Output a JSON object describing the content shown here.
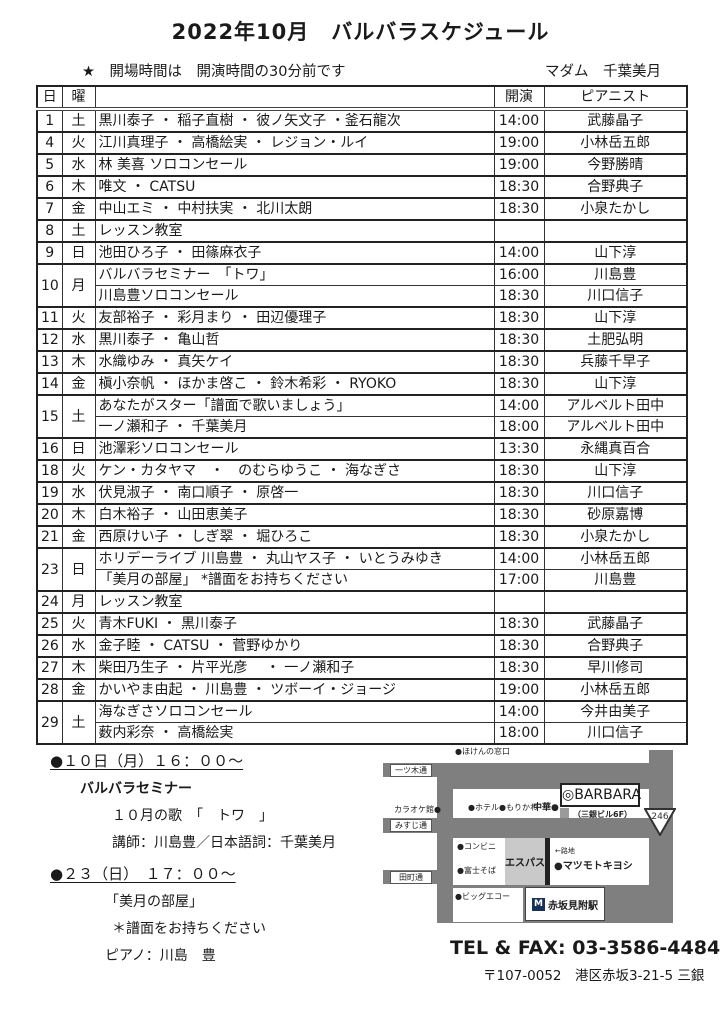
{
  "page": {
    "title": "2022年10月　バルバラスケジュール",
    "note_star": "★　開場時間は　開演時間の30分前です",
    "madam": "マダム　千葉美月"
  },
  "table": {
    "headers": {
      "date": "日",
      "day": "曜",
      "program": "",
      "start": "開演",
      "pianist": "ピアニスト"
    }
  },
  "schedule": [
    {
      "date": "1",
      "day": "土",
      "entries": [
        {
          "program": "黒川泰子 ・ 稲子直樹 ・ 彼ノ矢文子 ・釜石龍次",
          "time": "14:00",
          "pianist": "武藤晶子"
        }
      ]
    },
    {
      "date": "4",
      "day": "火",
      "entries": [
        {
          "program": "江川真理子 ・ 高橋絵実 ・ レジョン・ルイ",
          "time": "19:00",
          "pianist": "小林岳五郎"
        }
      ]
    },
    {
      "date": "5",
      "day": "水",
      "entries": [
        {
          "program": "林 美喜 ソロコンセール",
          "time": "19:00",
          "pianist": "今野勝晴"
        }
      ]
    },
    {
      "date": "6",
      "day": "木",
      "entries": [
        {
          "program": "唯文 ・ CATSU",
          "time": "18:30",
          "pianist": "合野典子"
        }
      ]
    },
    {
      "date": "7",
      "day": "金",
      "entries": [
        {
          "program": "中山エミ ・ 中村扶実 ・ 北川太朗",
          "time": "18:30",
          "pianist": "小泉たかし"
        }
      ]
    },
    {
      "date": "8",
      "day": "土",
      "entries": [
        {
          "program": "レッスン教室",
          "time": "",
          "pianist": ""
        }
      ]
    },
    {
      "date": "9",
      "day": "日",
      "entries": [
        {
          "program": "池田ひろ子 ・ 田篠麻衣子",
          "time": "14:00",
          "pianist": "山下淳"
        }
      ]
    },
    {
      "date": "10",
      "day": "月",
      "entries": [
        {
          "program": "バルバラセミナー　「トワ」",
          "time": "16:00",
          "pianist": "川島豊"
        },
        {
          "program": "川島豊ソロコンセール",
          "time": "18:30",
          "pianist": "川口信子"
        }
      ]
    },
    {
      "date": "11",
      "day": "火",
      "entries": [
        {
          "program": "友部裕子 ・ 彩月まり ・ 田辺優理子",
          "time": "18:30",
          "pianist": "山下淳"
        }
      ]
    },
    {
      "date": "12",
      "day": "水",
      "entries": [
        {
          "program": "黒川泰子 ・ 亀山哲",
          "time": "18:30",
          "pianist": "土肥弘明"
        }
      ]
    },
    {
      "date": "13",
      "day": "木",
      "entries": [
        {
          "program": "水織ゆみ ・ 真矢ケイ",
          "time": "18:30",
          "pianist": "兵藤千早子"
        }
      ]
    },
    {
      "date": "14",
      "day": "金",
      "entries": [
        {
          "program": "槇小奈帆 ・ ほかま啓こ ・ 鈴木希彩 ・ RYOKO",
          "time": "18:30",
          "pianist": "山下淳"
        }
      ]
    },
    {
      "date": "15",
      "day": "土",
      "entries": [
        {
          "program": "あなたがスター「譜面で歌いましょう」",
          "time": "14:00",
          "pianist": "アルベルト田中"
        },
        {
          "program": "一ノ瀬和子 ・ 千葉美月",
          "time": "18:00",
          "pianist": "アルベルト田中"
        }
      ]
    },
    {
      "date": "16",
      "day": "日",
      "entries": [
        {
          "program": "池澤彩ソロコンセール",
          "time": "13:30",
          "pianist": "永縄真百合"
        }
      ]
    },
    {
      "date": "18",
      "day": "火",
      "entries": [
        {
          "program": "ケン・カタヤマ　・　のむらゆうこ ・ 海なぎさ",
          "time": "18:30",
          "pianist": "山下淳"
        }
      ]
    },
    {
      "date": "19",
      "day": "水",
      "entries": [
        {
          "program": "伏見淑子 ・ 南口順子 ・ 原啓一",
          "time": "18:30",
          "pianist": "川口信子"
        }
      ]
    },
    {
      "date": "20",
      "day": "木",
      "entries": [
        {
          "program": "白木裕子 ・ 山田恵美子",
          "time": "18:30",
          "pianist": "砂原嘉博"
        }
      ]
    },
    {
      "date": "21",
      "day": "金",
      "entries": [
        {
          "program": "西原けい子 ・ しぎ翠 ・ 堀ひろこ",
          "time": "18:30",
          "pianist": "小泉たかし"
        }
      ]
    },
    {
      "date": "23",
      "day": "日",
      "entries": [
        {
          "program": "ホリデーライブ 川島豊 ・ 丸山ヤス子 ・ いとうみゆき",
          "time": "14:00",
          "pianist": "小林岳五郎"
        },
        {
          "program": "「美月の部屋」 *譜面をお持ちください",
          "time": "17:00",
          "pianist": "川島豊"
        }
      ]
    },
    {
      "date": "24",
      "day": "月",
      "entries": [
        {
          "program": "レッスン教室",
          "time": "",
          "pianist": ""
        }
      ]
    },
    {
      "date": "25",
      "day": "火",
      "entries": [
        {
          "program": "青木FUKI ・ 黒川泰子",
          "time": "18:30",
          "pianist": "武藤晶子"
        }
      ]
    },
    {
      "date": "26",
      "day": "水",
      "entries": [
        {
          "program": "金子睦 ・ CATSU ・ 菅野ゆかり",
          "time": "18:30",
          "pianist": "合野典子"
        }
      ]
    },
    {
      "date": "27",
      "day": "木",
      "entries": [
        {
          "program": "柴田乃生子 ・ 片平光彦 　・ 一ノ瀬和子",
          "time": "18:30",
          "pianist": "早川修司"
        }
      ]
    },
    {
      "date": "28",
      "day": "金",
      "entries": [
        {
          "program": "かいやま由起 ・ 川島豊 ・ ツボーイ・ジョージ",
          "time": "19:00",
          "pianist": "小林岳五郎"
        }
      ]
    },
    {
      "date": "29",
      "day": "土",
      "entries": [
        {
          "program": "海なぎさソロコンセール",
          "time": "14:00",
          "pianist": "今井由美子"
        },
        {
          "program": "薮内彩奈 ・ 高橋絵実",
          "time": "18:00",
          "pianist": "川口信子"
        }
      ]
    }
  ],
  "announcements": {
    "first": {
      "heading": "●１０日（月）１６：００～",
      "line1": "バルバラセミナー",
      "line2": "１０月の歌　「　トワ　」",
      "line3": "講師：川島豊／日本語詞：千葉美月"
    },
    "second": {
      "heading": "●２３（日）　１７：００～",
      "line1": "「美月の部屋」",
      "line2": "＊譜面をお持ちください",
      "line3": "ピアノ：川島　豊"
    }
  },
  "map": {
    "streets": {
      "hitotsugi": "一ツ木通",
      "misuji": "みすじ通",
      "tamachi": "田町通"
    },
    "labels": {
      "hoken": "●ほけんの窓口",
      "karaoke": "カラオケ館●",
      "hotel": "●ホテル●もりかわ",
      "chuka": "中華●",
      "barbara": "◎BARBARA",
      "barbara_bldg": "（三銀ビル6F）",
      "route246": "246",
      "conbini": "●コンビニ",
      "espace": "エスパス",
      "fujisoba": "●富士そば",
      "roji": "←路地",
      "matsumoto": "●マツモトキヨシ",
      "bigecho": "●ビッグエコー",
      "metro_logo": "M",
      "station": "赤坂見附駅"
    }
  },
  "contact": {
    "tel": "TEL & FAX: 03-3586-4484",
    "address": "〒107-0052　港区赤坂3-21-5 三銀"
  },
  "colors": {
    "road": "#7f7f7f",
    "alley": "#222222",
    "espace_bg": "#c9c9c9",
    "metro": "#16325c"
  }
}
